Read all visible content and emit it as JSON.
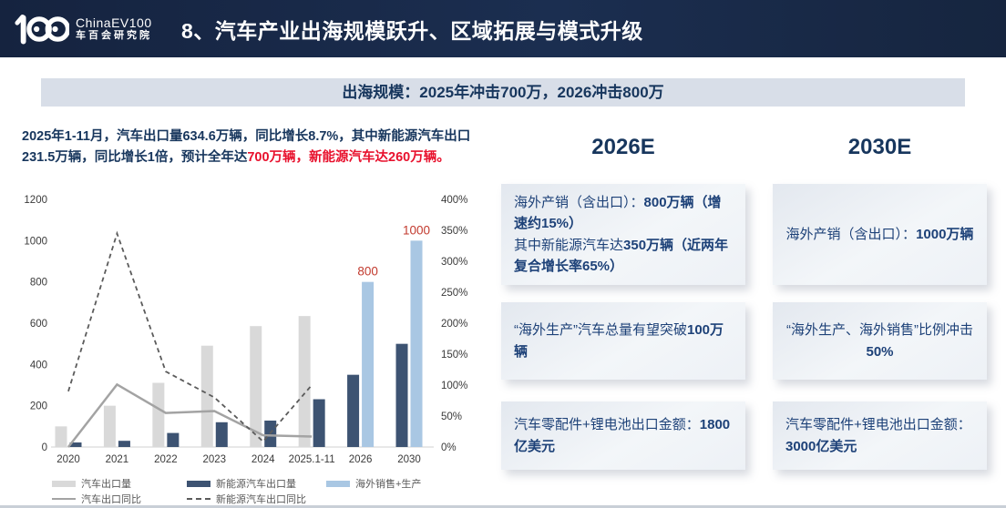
{
  "header": {
    "logo_mark": "100",
    "logo_en": "ChinaEV100",
    "logo_cn": "车百会研究院",
    "title": "8、汽车产业出海规模跃升、区域拓展与模式升级"
  },
  "banner": {
    "text": "出海规模：2025年冲击700万，2026冲击800万"
  },
  "summary": {
    "segments": [
      {
        "t": "2025年1-11月，汽车出口量634.6万辆，同比增长8.7%，其中新能源汽车出口231.5万辆，同比增长1倍，预计全年达"
      },
      {
        "t": "700万辆，新能源汽车达260万辆。",
        "c": "#e8112d"
      }
    ]
  },
  "chart_data": {
    "type": "bar+line combo",
    "categories": [
      "2020",
      "2021",
      "2022",
      "2023",
      "2024",
      "2025.1-11",
      "2026",
      "2030"
    ],
    "series": [
      {
        "name": "汽车出口量",
        "type": "bar",
        "axis": "left",
        "color": "#d9d9d9",
        "values": [
          100,
          200,
          311,
          491,
          586,
          634.6,
          null,
          null
        ]
      },
      {
        "name": "新能源汽车出口量",
        "type": "bar",
        "axis": "left",
        "color": "#3d5372",
        "values": [
          22,
          30,
          68,
          120,
          128,
          231.5,
          350,
          500
        ]
      },
      {
        "name": "海外销售+生产",
        "type": "bar",
        "axis": "left",
        "color": "#a9c7e3",
        "values": [
          null,
          null,
          null,
          null,
          null,
          null,
          800,
          1000
        ],
        "labels": {
          "6": "800",
          "7": "1000"
        },
        "label_color": "#c23a2e"
      },
      {
        "name": "汽车出口同比",
        "type": "line",
        "style": "solid",
        "axis": "right",
        "color": "#a3a3a3",
        "values": [
          0,
          101,
          55,
          58,
          19,
          17,
          null,
          null
        ]
      },
      {
        "name": "新能源汽车出口同比",
        "type": "line",
        "style": "dashed",
        "axis": "right",
        "color": "#5b5b5b",
        "values": [
          90,
          345,
          122,
          80,
          9,
          100,
          null,
          null
        ]
      }
    ],
    "left_axis": {
      "min": 0,
      "max": 1200,
      "step": 200,
      "ticks": [
        "0",
        "200",
        "400",
        "600",
        "800",
        "1000",
        "1200"
      ]
    },
    "right_axis": {
      "min": 0,
      "max": 400,
      "step": 50,
      "ticks": [
        "0%",
        "50%",
        "100%",
        "150%",
        "200%",
        "250%",
        "300%",
        "350%",
        "400%"
      ]
    },
    "grid": false,
    "legend_position": "bottom"
  },
  "columns": [
    {
      "header": "2026E",
      "cards": [
        {
          "segments": [
            {
              "t": "海外产销（含出口）："
            },
            {
              "t": "800万辆（增速约15%）",
              "b": 1
            },
            {
              "t": "\n其中新能源汽车达"
            },
            {
              "t": "350万辆（近两年复合增长率65%）",
              "b": 1
            }
          ]
        },
        {
          "segments": [
            {
              "t": "“海外生产”汽车总量有望突破"
            },
            {
              "t": "100万辆",
              "b": 1
            }
          ]
        },
        {
          "segments": [
            {
              "t": "汽车零配件+锂电池出口金额："
            },
            {
              "t": "1800亿美元",
              "b": 1
            }
          ]
        }
      ]
    },
    {
      "header": "2030E",
      "cards": [
        {
          "segments": [
            {
              "t": "海外产销（含出口）："
            },
            {
              "t": "1000万辆",
              "b": 1
            }
          ]
        },
        {
          "segments": [
            {
              "t": "“海外生产、海外销售”比例冲击"
            },
            {
              "t": "50%",
              "b": 1
            }
          ]
        },
        {
          "segments": [
            {
              "t": "汽车零配件+锂电池出口金额："
            },
            {
              "t": "3000亿美元",
              "b": 1
            }
          ]
        }
      ]
    }
  ],
  "colors": {
    "header_bg": "#1b2e50",
    "banner_bg": "#d8dee8",
    "navy_text": "#17365d",
    "card_text": "#1d4178",
    "red_highlight": "#e8112d",
    "red_bar_label": "#c23a2e"
  }
}
